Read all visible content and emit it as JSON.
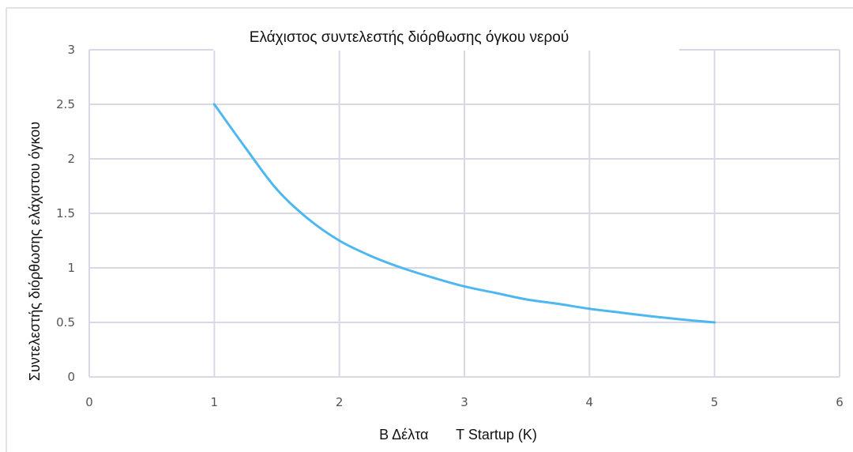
{
  "chart_data": {
    "type": "line",
    "title": "Ελάχιστος συντελεστής διόρθωσης όγκου νερού",
    "xlabel": "Β Δέλτα       Τ Startup (K)",
    "ylabel": "Συντελεστής διόρθωσης ελάχιστου όγκου",
    "xlim": [
      0,
      6
    ],
    "ylim": [
      0,
      3
    ],
    "x_ticks": [
      "0",
      "1",
      "2",
      "3",
      "4",
      "5",
      "6"
    ],
    "y_ticks": [
      "0",
      "0.5",
      "1",
      "1.5",
      "2",
      "2.5",
      "3"
    ],
    "grid": true,
    "line_color": "#4db8ef",
    "grid_color": "#d9d9e6",
    "series": [
      {
        "x": [
          1,
          1.25,
          1.5,
          1.75,
          2,
          2.25,
          2.5,
          2.75,
          3,
          3.25,
          3.5,
          3.75,
          4,
          4.25,
          4.5,
          4.75,
          5
        ],
        "values": [
          2.5,
          2.1,
          1.72,
          1.45,
          1.25,
          1.11,
          1.0,
          0.91,
          0.83,
          0.77,
          0.71,
          0.67,
          0.625,
          0.59,
          0.555,
          0.525,
          0.5
        ]
      }
    ]
  }
}
